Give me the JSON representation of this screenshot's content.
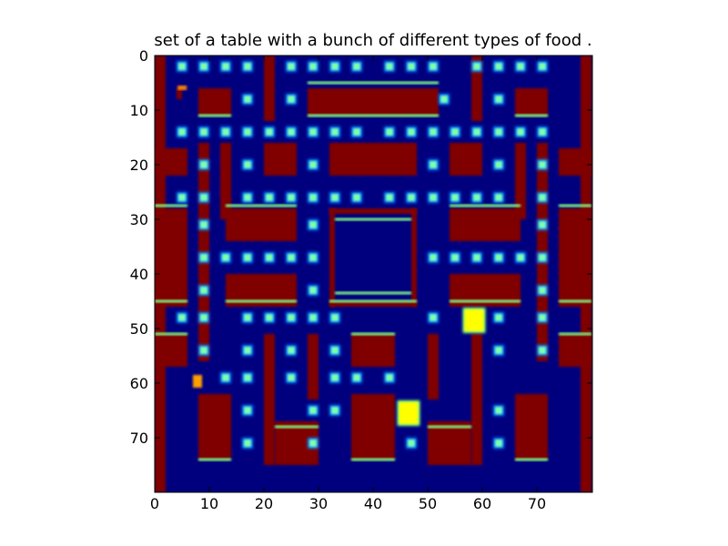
{
  "title": "set of a table with a bunch of different types of food .",
  "axes": {
    "x_ticks": [
      "0",
      "10",
      "20",
      "30",
      "40",
      "50",
      "60",
      "70"
    ],
    "y_ticks": [
      "0",
      "10",
      "20",
      "30",
      "40",
      "50",
      "60",
      "70"
    ]
  },
  "image": {
    "grid_size": [
      80,
      80
    ],
    "colormap": "jet",
    "background_color": "#00007f",
    "wall_color": "#800000",
    "wall_edge_color": "#7fff7f",
    "pellet_color": "#7fffb0",
    "ghost_color": "#ffff00"
  }
}
